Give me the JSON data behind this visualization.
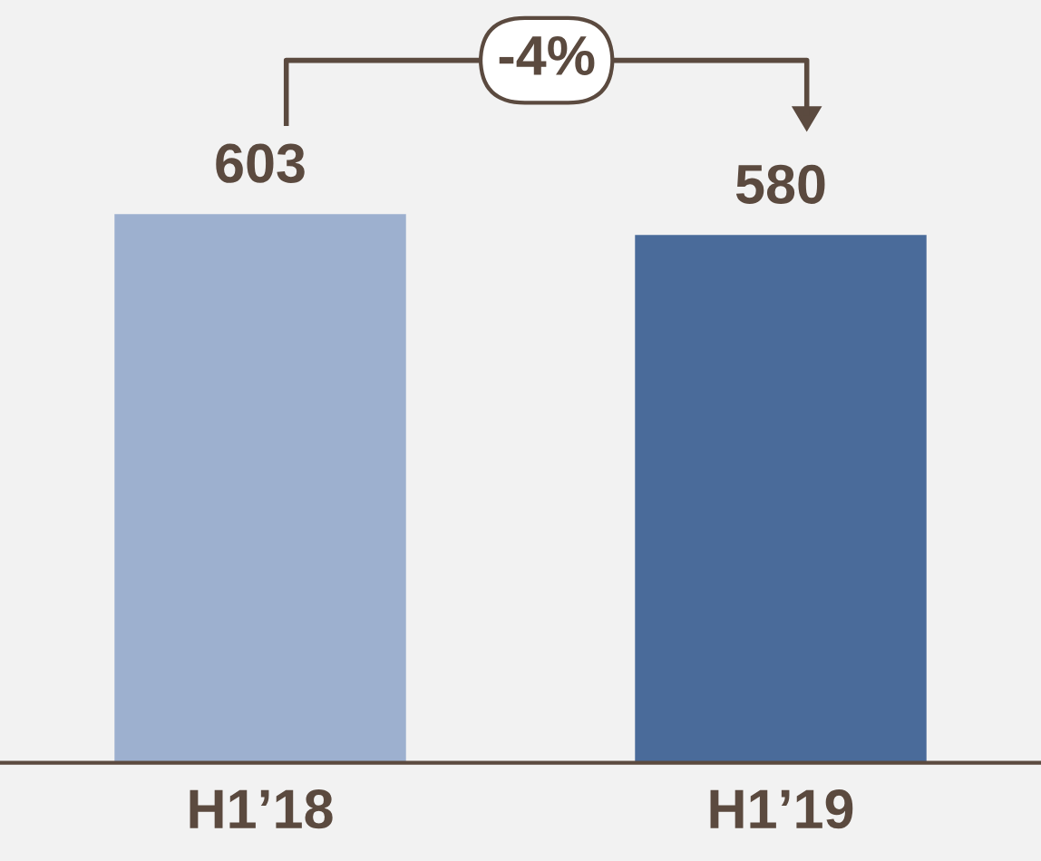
{
  "chart_data": {
    "type": "bar",
    "categories": [
      "H1’18",
      "H1’19"
    ],
    "values": [
      603,
      580
    ],
    "colors": [
      "#9db0cf",
      "#4a6b9a"
    ],
    "data_labels": true,
    "annotations": [
      "-4%"
    ],
    "grid": false,
    "legend": false
  }
}
